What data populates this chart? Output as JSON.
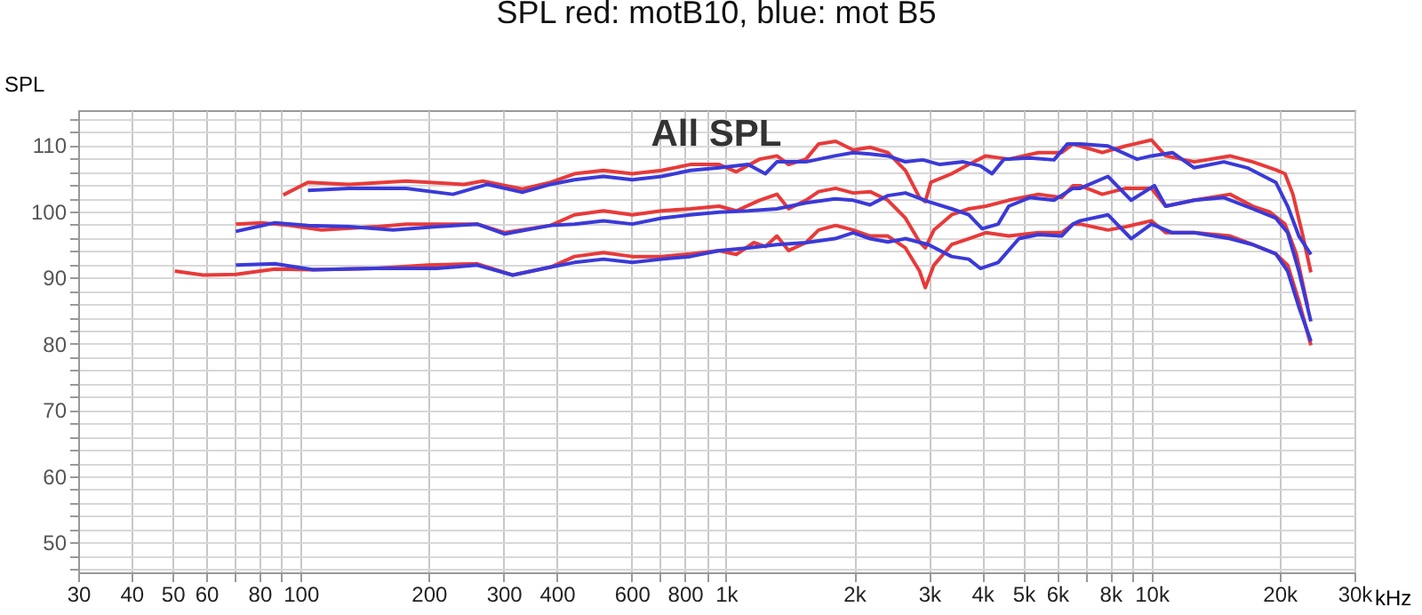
{
  "chart_data": {
    "type": "line",
    "title": "SPL red: motB10, blue: mot B5",
    "ylabel": "SPL",
    "annotations": [
      "All SPL"
    ],
    "log": "x",
    "grid": true,
    "xlim": [
      30,
      30000
    ],
    "ylim": [
      45.5,
      115.3
    ],
    "xticks": [
      30,
      40,
      50,
      60,
      {
        "value": 70,
        "label": null
      },
      80,
      {
        "value": 90,
        "label": null
      },
      100,
      200,
      300,
      400,
      600,
      {
        "value": 700,
        "label": null
      },
      800,
      {
        "value": 900,
        "label": null
      },
      {
        "value": 1000,
        "label": "1k"
      },
      {
        "value": 2000,
        "label": "2k"
      },
      {
        "value": 3000,
        "label": "3k"
      },
      {
        "value": 4000,
        "label": "4k"
      },
      {
        "value": 5000,
        "label": "5k"
      },
      {
        "value": 6000,
        "label": "6k"
      },
      {
        "value": 7000,
        "label": null
      },
      {
        "value": 8000,
        "label": "8k"
      },
      {
        "value": 9000,
        "label": null
      },
      {
        "value": 10000,
        "label": "10k"
      },
      {
        "value": 20000,
        "label": "20k"
      },
      {
        "value": 30000,
        "label": "30k"
      }
    ],
    "xlabel": "kHz",
    "yticks": [
      {
        "value": 46,
        "label": null
      },
      {
        "value": 48,
        "label": null
      },
      50,
      {
        "value": 52,
        "label": null
      },
      {
        "value": 54,
        "label": null
      },
      {
        "value": 56,
        "label": null
      },
      {
        "value": 58,
        "label": null
      },
      60,
      {
        "value": 62,
        "label": null
      },
      {
        "value": 64,
        "label": null
      },
      {
        "value": 66,
        "label": null
      },
      {
        "value": 68,
        "label": null
      },
      70,
      {
        "value": 72,
        "label": null
      },
      {
        "value": 74,
        "label": null
      },
      {
        "value": 76,
        "label": null
      },
      {
        "value": 78,
        "label": null
      },
      80,
      {
        "value": 82,
        "label": null
      },
      {
        "value": 84,
        "label": null
      },
      {
        "value": 86,
        "label": null
      },
      {
        "value": 88,
        "label": null
      },
      90,
      {
        "value": 92,
        "label": null
      },
      {
        "value": 94,
        "label": null
      },
      {
        "value": 96,
        "label": null
      },
      {
        "value": 98,
        "label": null
      },
      100,
      {
        "value": 102,
        "label": null
      },
      {
        "value": 104,
        "label": null
      },
      {
        "value": 106,
        "label": null
      },
      {
        "value": 108,
        "label": null
      },
      110,
      {
        "value": 112,
        "label": null
      },
      {
        "value": 114,
        "label": null
      }
    ],
    "series": [
      {
        "color": "#e83a3a",
        "x": [
          91,
          104,
          130,
          177,
          242,
          268,
          332,
          387,
          440,
          515,
          602,
          705,
          824,
          963,
          1057,
          1199,
          1317,
          1403,
          1541,
          1650,
          1810,
          1990,
          2180,
          2400,
          2640,
          2850,
          2940,
          3030,
          3390,
          3720,
          4080,
          4620,
          5420,
          6150,
          6540,
          6800,
          7660,
          8700,
          10000,
          10800,
          12600,
          15300,
          17300,
          19600,
          20600,
          21500,
          22600,
          23700
        ],
        "values": [
          102.5,
          104.4,
          104.1,
          104.6,
          104.1,
          104.6,
          103.4,
          104.4,
          105.7,
          106.2,
          105.7,
          106.2,
          107.1,
          107.1,
          106.0,
          107.9,
          108.4,
          107.1,
          107.9,
          110.2,
          110.6,
          109.3,
          109.7,
          108.9,
          106.2,
          102.1,
          101.5,
          104.4,
          105.7,
          107.1,
          108.4,
          107.9,
          108.9,
          108.9,
          110.2,
          109.9,
          108.9,
          109.9,
          110.8,
          108.4,
          107.5,
          108.4,
          107.5,
          106.3,
          105.7,
          102.6,
          96.8,
          90.8
        ]
      },
      {
        "color": "#e83a3a",
        "x": [
          70.4,
          81,
          94,
          112,
          150,
          177,
          260,
          302,
          387,
          440,
          515,
          602,
          705,
          824,
          963,
          1057,
          1199,
          1317,
          1403,
          1541,
          1650,
          1810,
          1990,
          2180,
          2400,
          2640,
          2850,
          2940,
          3080,
          3390,
          3720,
          4080,
          4620,
          5420,
          6150,
          6540,
          6800,
          7660,
          8700,
          10000,
          10800,
          12600,
          15300,
          17300,
          19000,
          20600,
          21900,
          23300
        ],
        "values": [
          98.1,
          98.3,
          97.9,
          97.2,
          97.7,
          98.1,
          98.1,
          96.8,
          97.9,
          99.5,
          100.1,
          99.5,
          100.1,
          100.4,
          100.8,
          100.1,
          101.7,
          102.6,
          100.4,
          101.7,
          103.0,
          103.5,
          102.8,
          103.0,
          101.7,
          99.0,
          95.4,
          94.5,
          97.2,
          99.5,
          100.4,
          100.8,
          101.7,
          102.6,
          102.1,
          103.9,
          103.9,
          102.6,
          103.5,
          103.5,
          100.8,
          101.7,
          102.6,
          100.8,
          99.9,
          98.1,
          93.6,
          85.6
        ]
      },
      {
        "color": "#e83a3a",
        "x": [
          50.6,
          59,
          70.4,
          87,
          107,
          150,
          199,
          260,
          315,
          387,
          440,
          515,
          602,
          705,
          824,
          963,
          1057,
          1162,
          1237,
          1317,
          1403,
          1541,
          1650,
          1810,
          1990,
          2180,
          2400,
          2640,
          2850,
          2940,
          3080,
          3390,
          3720,
          4080,
          4620,
          5420,
          6150,
          6540,
          6800,
          7900,
          8700,
          10000,
          10800,
          12600,
          15300,
          17300,
          19600,
          20900,
          22200,
          23700
        ],
        "values": [
          91.0,
          90.4,
          90.5,
          91.3,
          91.2,
          91.4,
          91.9,
          92.1,
          90.4,
          91.6,
          93.2,
          93.8,
          93.2,
          93.2,
          93.6,
          94.1,
          93.5,
          95.3,
          94.7,
          96.3,
          94.1,
          95.3,
          97.2,
          97.9,
          97.2,
          96.3,
          96.3,
          94.5,
          91.0,
          88.5,
          91.9,
          95.0,
          95.9,
          96.8,
          96.3,
          96.8,
          96.8,
          98.1,
          98.1,
          97.2,
          97.7,
          98.6,
          96.8,
          96.8,
          96.3,
          95.0,
          93.6,
          91.9,
          86.5,
          79.8
        ]
      },
      {
        "color": "#3a3ad8",
        "x": [
          104,
          130,
          177,
          228,
          275,
          332,
          387,
          440,
          515,
          602,
          705,
          824,
          963,
          1126,
          1237,
          1317,
          1541,
          1803,
          1990,
          2180,
          2400,
          2640,
          2900,
          3180,
          3610,
          3960,
          4220,
          4500,
          5170,
          5900,
          6340,
          6540,
          6800,
          7900,
          9250,
          10000,
          11200,
          12600,
          14800,
          16800,
          18400,
          19600,
          20900,
          22200,
          23700
        ],
        "values": [
          103.2,
          103.5,
          103.5,
          102.6,
          104.1,
          102.9,
          104.1,
          104.8,
          105.3,
          104.8,
          105.3,
          106.2,
          106.6,
          107.1,
          105.7,
          107.5,
          107.5,
          108.4,
          108.9,
          108.7,
          108.4,
          107.5,
          107.8,
          107.1,
          107.5,
          106.9,
          105.7,
          107.9,
          108.1,
          107.8,
          110.2,
          110.2,
          110.2,
          109.9,
          107.9,
          108.4,
          108.9,
          106.6,
          107.5,
          106.6,
          105.3,
          104.4,
          100.8,
          96.3,
          93.5
        ]
      },
      {
        "color": "#3a3ad8",
        "x": [
          70.4,
          87,
          104,
          130,
          165,
          209,
          260,
          302,
          387,
          440,
          515,
          602,
          705,
          824,
          963,
          1126,
          1317,
          1541,
          1803,
          1990,
          2180,
          2400,
          2640,
          2990,
          3390,
          3720,
          4000,
          4360,
          4620,
          5170,
          5900,
          6540,
          6800,
          7900,
          8960,
          10160,
          10800,
          12600,
          14800,
          17300,
          19600,
          20900,
          22200,
          23700
        ],
        "values": [
          97.0,
          98.3,
          97.9,
          97.7,
          97.2,
          97.7,
          98.1,
          96.6,
          97.9,
          98.1,
          98.6,
          98.1,
          99.0,
          99.5,
          99.9,
          100.1,
          100.4,
          101.3,
          101.9,
          101.7,
          101.0,
          102.4,
          102.8,
          101.5,
          100.4,
          99.5,
          97.4,
          98.1,
          100.8,
          102.1,
          101.7,
          103.5,
          103.5,
          105.3,
          101.7,
          103.9,
          100.8,
          101.7,
          102.1,
          100.4,
          99.0,
          96.8,
          91.0,
          83.4
        ]
      },
      {
        "color": "#3a3ad8",
        "x": [
          70.4,
          87,
          107,
          150,
          209,
          260,
          315,
          387,
          440,
          515,
          602,
          705,
          824,
          963,
          1126,
          1317,
          1541,
          1803,
          1990,
          2180,
          2400,
          2640,
          2990,
          3390,
          3720,
          3960,
          4360,
          4880,
          5420,
          6150,
          6540,
          6800,
          7900,
          8960,
          10000,
          11200,
          12600,
          15300,
          17300,
          19600,
          20900,
          22200,
          23700
        ],
        "values": [
          91.9,
          92.1,
          91.2,
          91.4,
          91.4,
          91.9,
          90.4,
          91.6,
          92.3,
          92.8,
          92.3,
          92.8,
          93.2,
          94.1,
          94.5,
          95.0,
          95.3,
          95.9,
          96.8,
          95.9,
          95.4,
          95.9,
          95.0,
          93.2,
          92.8,
          91.4,
          92.3,
          95.9,
          96.5,
          96.3,
          98.1,
          98.6,
          99.5,
          95.9,
          98.1,
          96.8,
          96.8,
          95.9,
          95.0,
          93.6,
          91.0,
          85.6,
          80.4
        ]
      }
    ]
  }
}
